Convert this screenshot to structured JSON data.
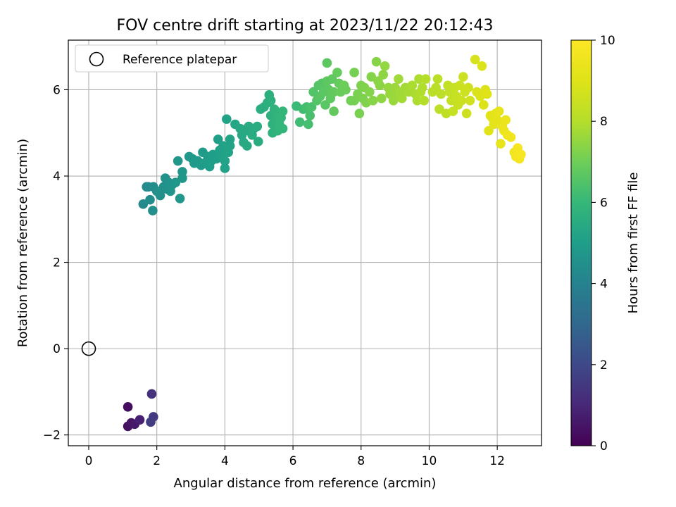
{
  "chart_data": {
    "type": "scatter",
    "title": "FOV centre drift starting at 2023/11/22 20:12:43",
    "xlabel": "Angular distance from reference (arcmin)",
    "ylabel": "Rotation from reference (arcmin)",
    "xlim": [
      -0.6,
      13.3
    ],
    "ylim": [
      -2.25,
      7.15
    ],
    "xticks": [
      "0",
      "2",
      "4",
      "6",
      "8",
      "10",
      "12"
    ],
    "yticks": [
      "−2",
      "0",
      "2",
      "4",
      "6"
    ],
    "grid": true,
    "legend": {
      "location": "top-left",
      "entries": [
        "Reference platepar"
      ]
    },
    "reference_point": {
      "x": 0,
      "y": 0,
      "label": "Reference platepar"
    },
    "colorbar": {
      "label": "Hours from first FF file",
      "range": [
        0,
        10
      ],
      "ticks": [
        "0",
        "2",
        "4",
        "6",
        "8",
        "10"
      ],
      "colormap": "viridis"
    },
    "points": [
      [
        1.15,
        -1.35,
        0.3
      ],
      [
        1.15,
        -1.8,
        0.4
      ],
      [
        1.25,
        -1.72,
        0.5
      ],
      [
        1.35,
        -1.75,
        0.6
      ],
      [
        1.5,
        -1.65,
        0.8
      ],
      [
        1.85,
        -1.05,
        1.3
      ],
      [
        1.9,
        -1.58,
        1.5
      ],
      [
        1.82,
        -1.7,
        1.6
      ],
      [
        1.6,
        3.35,
        4.3
      ],
      [
        1.7,
        3.75,
        4.3
      ],
      [
        1.75,
        3.75,
        4.35
      ],
      [
        1.8,
        3.45,
        4.4
      ],
      [
        1.9,
        3.75,
        4.4
      ],
      [
        1.88,
        3.2,
        4.45
      ],
      [
        2.0,
        3.65,
        4.5
      ],
      [
        2.1,
        3.55,
        4.5
      ],
      [
        2.2,
        3.75,
        4.55
      ],
      [
        2.25,
        3.95,
        4.55
      ],
      [
        2.3,
        3.7,
        4.6
      ],
      [
        2.35,
        3.85,
        4.6
      ],
      [
        2.4,
        3.65,
        4.65
      ],
      [
        2.45,
        3.8,
        4.65
      ],
      [
        2.55,
        3.85,
        4.7
      ],
      [
        2.62,
        4.35,
        4.7
      ],
      [
        2.68,
        3.48,
        4.7
      ],
      [
        2.75,
        3.95,
        4.75
      ],
      [
        2.75,
        4.1,
        4.75
      ],
      [
        2.95,
        4.45,
        4.8
      ],
      [
        3.05,
        4.4,
        4.8
      ],
      [
        3.1,
        4.3,
        4.85
      ],
      [
        3.2,
        4.35,
        4.85
      ],
      [
        3.3,
        4.25,
        4.9
      ],
      [
        3.35,
        4.55,
        4.9
      ],
      [
        3.4,
        4.3,
        4.95
      ],
      [
        3.5,
        4.45,
        4.95
      ],
      [
        3.55,
        4.22,
        5.0
      ],
      [
        3.6,
        4.35,
        5.0
      ],
      [
        3.65,
        4.5,
        5.0
      ],
      [
        3.75,
        4.4,
        5.05
      ],
      [
        3.8,
        4.85,
        5.05
      ],
      [
        3.85,
        4.6,
        5.1
      ],
      [
        3.9,
        4.45,
        5.1
      ],
      [
        3.95,
        4.7,
        5.1
      ],
      [
        4.0,
        4.18,
        5.15
      ],
      [
        4.0,
        4.35,
        5.15
      ],
      [
        4.05,
        4.65,
        5.15
      ],
      [
        4.05,
        5.32,
        5.2
      ],
      [
        4.1,
        4.55,
        5.2
      ],
      [
        4.15,
        4.85,
        5.2
      ],
      [
        4.15,
        4.7,
        5.2
      ],
      [
        4.3,
        5.2,
        5.3
      ],
      [
        4.45,
        5.1,
        5.35
      ],
      [
        4.5,
        4.95,
        5.35
      ],
      [
        4.55,
        4.78,
        5.4
      ],
      [
        4.6,
        5.05,
        5.4
      ],
      [
        4.7,
        5.15,
        5.45
      ],
      [
        4.65,
        4.7,
        5.45
      ],
      [
        4.8,
        4.95,
        5.5
      ],
      [
        4.85,
        5.1,
        5.5
      ],
      [
        4.95,
        5.15,
        5.55
      ],
      [
        4.98,
        4.8,
        5.55
      ],
      [
        5.05,
        5.55,
        5.6
      ],
      [
        5.15,
        5.6,
        5.6
      ],
      [
        5.25,
        5.7,
        5.65
      ],
      [
        5.3,
        5.88,
        5.65
      ],
      [
        5.35,
        5.75,
        5.7
      ],
      [
        5.35,
        5.4,
        5.7
      ],
      [
        5.4,
        5.2,
        5.75
      ],
      [
        5.4,
        5.0,
        5.75
      ],
      [
        5.45,
        5.55,
        5.8
      ],
      [
        5.5,
        5.3,
        5.8
      ],
      [
        5.55,
        5.05,
        5.85
      ],
      [
        5.55,
        5.45,
        5.85
      ],
      [
        5.6,
        5.2,
        5.9
      ],
      [
        5.65,
        5.35,
        5.9
      ],
      [
        5.7,
        5.5,
        5.95
      ],
      [
        5.7,
        5.1,
        5.95
      ],
      [
        6.1,
        5.62,
        6.1
      ],
      [
        6.2,
        5.25,
        6.2
      ],
      [
        6.3,
        5.55,
        6.2
      ],
      [
        6.4,
        5.6,
        6.3
      ],
      [
        6.45,
        5.2,
        6.3
      ],
      [
        6.5,
        5.4,
        6.35
      ],
      [
        6.55,
        5.6,
        6.4
      ],
      [
        6.6,
        5.95,
        6.5
      ],
      [
        6.7,
        5.75,
        6.55
      ],
      [
        6.75,
        6.1,
        6.55
      ],
      [
        6.8,
        5.85,
        6.6
      ],
      [
        6.85,
        6.15,
        6.6
      ],
      [
        6.9,
        5.95,
        6.65
      ],
      [
        6.95,
        5.65,
        6.65
      ],
      [
        7.0,
        6.62,
        6.7
      ],
      [
        7.0,
        6.2,
        6.7
      ],
      [
        7.05,
        6.0,
        6.7
      ],
      [
        7.1,
        5.8,
        6.75
      ],
      [
        7.15,
        6.25,
        6.75
      ],
      [
        7.2,
        5.95,
        6.8
      ],
      [
        7.2,
        5.5,
        6.8
      ],
      [
        7.3,
        6.4,
        6.85
      ],
      [
        7.35,
        6.15,
        6.85
      ],
      [
        7.4,
        5.95,
        6.9
      ],
      [
        7.5,
        6.1,
        6.95
      ],
      [
        7.55,
        6.0,
        6.95
      ],
      [
        7.7,
        5.75,
        7.05
      ],
      [
        7.8,
        5.75,
        7.1
      ],
      [
        7.8,
        6.4,
        7.1
      ],
      [
        7.9,
        5.9,
        7.15
      ],
      [
        7.95,
        5.45,
        7.15
      ],
      [
        8.0,
        6.1,
        7.2
      ],
      [
        8.05,
        5.8,
        7.2
      ],
      [
        8.1,
        6.05,
        7.25
      ],
      [
        8.15,
        5.7,
        7.25
      ],
      [
        8.25,
        5.95,
        7.3
      ],
      [
        8.3,
        6.3,
        7.3
      ],
      [
        8.35,
        5.75,
        7.35
      ],
      [
        8.45,
        6.65,
        7.35
      ],
      [
        8.5,
        6.2,
        7.4
      ],
      [
        8.55,
        6.1,
        7.4
      ],
      [
        8.6,
        5.8,
        7.45
      ],
      [
        8.65,
        6.35,
        7.45
      ],
      [
        8.7,
        6.55,
        7.5
      ],
      [
        8.8,
        6.05,
        7.55
      ],
      [
        8.85,
        5.9,
        7.6
      ],
      [
        8.95,
        5.75,
        7.6
      ],
      [
        9.0,
        6.05,
        7.65
      ],
      [
        9.05,
        5.85,
        7.65
      ],
      [
        9.1,
        6.25,
        7.7
      ],
      [
        9.15,
        5.95,
        7.7
      ],
      [
        9.2,
        5.8,
        7.75
      ],
      [
        9.3,
        6.05,
        7.75
      ],
      [
        9.4,
        5.95,
        7.8
      ],
      [
        9.5,
        6.1,
        7.85
      ],
      [
        9.6,
        5.9,
        7.85
      ],
      [
        9.65,
        5.75,
        7.9
      ],
      [
        9.7,
        6.25,
        7.9
      ],
      [
        9.75,
        5.95,
        7.95
      ],
      [
        9.8,
        6.05,
        7.95
      ],
      [
        9.85,
        5.75,
        8.0
      ],
      [
        9.9,
        6.25,
        8.0
      ],
      [
        10.1,
        5.95,
        8.1
      ],
      [
        10.2,
        6.05,
        8.15
      ],
      [
        10.25,
        6.25,
        8.15
      ],
      [
        10.3,
        5.55,
        8.2
      ],
      [
        10.35,
        5.9,
        8.2
      ],
      [
        10.5,
        5.45,
        8.25
      ],
      [
        10.55,
        6.1,
        8.3
      ],
      [
        10.6,
        5.95,
        8.3
      ],
      [
        10.65,
        5.75,
        8.35
      ],
      [
        10.7,
        5.5,
        8.4
      ],
      [
        10.75,
        6.05,
        8.4
      ],
      [
        10.8,
        5.85,
        8.45
      ],
      [
        10.85,
        5.65,
        8.45
      ],
      [
        10.9,
        6.1,
        8.5
      ],
      [
        10.95,
        5.75,
        8.5
      ],
      [
        11.0,
        6.3,
        8.55
      ],
      [
        11.05,
        5.95,
        8.55
      ],
      [
        11.1,
        5.45,
        8.6
      ],
      [
        11.15,
        6.05,
        8.6
      ],
      [
        11.2,
        5.75,
        8.65
      ],
      [
        11.35,
        6.7,
        8.8
      ],
      [
        11.4,
        5.95,
        8.85
      ],
      [
        11.5,
        5.85,
        8.9
      ],
      [
        11.55,
        6.55,
        8.9
      ],
      [
        11.6,
        5.65,
        8.95
      ],
      [
        11.65,
        6.0,
        8.95
      ],
      [
        11.7,
        5.9,
        9.0
      ],
      [
        11.75,
        5.05,
        9.05
      ],
      [
        11.8,
        5.4,
        9.1
      ],
      [
        11.85,
        5.35,
        9.1
      ],
      [
        11.9,
        5.2,
        9.15
      ],
      [
        11.95,
        5.45,
        9.2
      ],
      [
        12.0,
        5.3,
        9.2
      ],
      [
        12.05,
        5.5,
        9.25
      ],
      [
        12.1,
        4.75,
        9.3
      ],
      [
        12.15,
        5.15,
        9.35
      ],
      [
        12.2,
        5.05,
        9.4
      ],
      [
        12.25,
        5.3,
        9.45
      ],
      [
        12.3,
        4.95,
        9.5
      ],
      [
        12.4,
        4.9,
        9.55
      ],
      [
        12.5,
        4.55,
        9.6
      ],
      [
        12.55,
        4.45,
        9.65
      ],
      [
        12.6,
        4.65,
        9.7
      ],
      [
        12.65,
        4.4,
        9.75
      ],
      [
        12.7,
        4.5,
        9.8
      ]
    ]
  }
}
